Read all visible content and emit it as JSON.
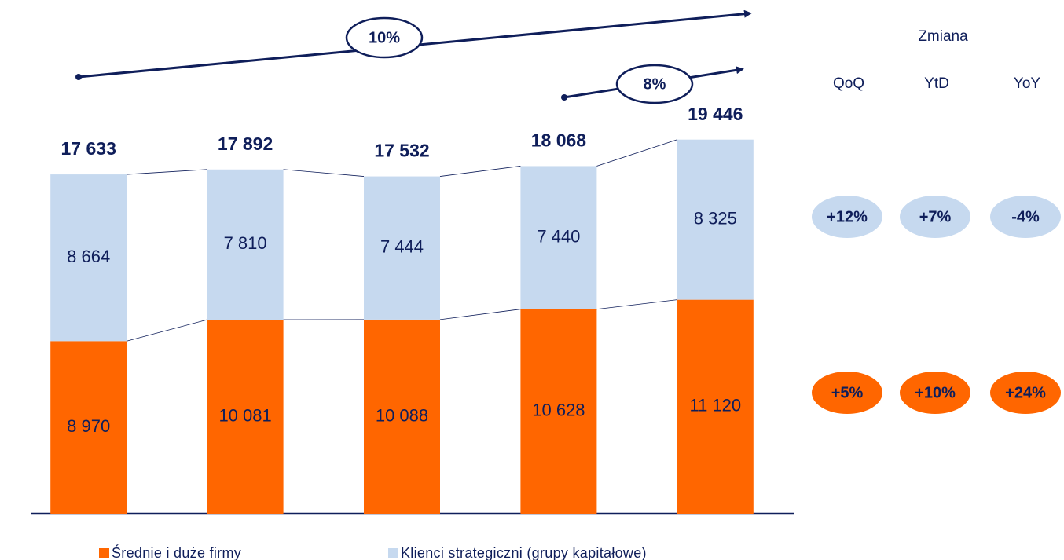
{
  "chart_data": {
    "type": "stacked_bar",
    "series": [
      {
        "name": "Średnie i duże firmy",
        "color": "#ff6600",
        "values": [
          8970,
          10081,
          10088,
          10628,
          11120
        ],
        "value_labels": [
          "8 970",
          "10 081",
          "10 088",
          "10 628",
          "11 120"
        ],
        "changes": [
          {
            "value": 5,
            "label": "+5%"
          },
          {
            "value": 10,
            "label": "+10%"
          },
          {
            "value": 24,
            "label": "+24%"
          }
        ]
      },
      {
        "name": "Klienci strategiczni (grupy kapitałowe)",
        "color": "#c6d9ef",
        "values": [
          8664,
          7810,
          7444,
          7440,
          8325
        ],
        "value_labels": [
          "8 664",
          "7 810",
          "7 444",
          "7 440",
          "8 325"
        ],
        "changes": [
          {
            "value": 12,
            "label": "+12%"
          },
          {
            "value": 7,
            "label": "+7%"
          },
          {
            "value": -4,
            "label": "-4%"
          }
        ]
      }
    ],
    "totals": [
      17633,
      17892,
      17532,
      18068,
      19446
    ],
    "total_labels": [
      "17 633",
      "17 892",
      "17 532",
      "18 068",
      "19 446"
    ],
    "ylim": [
      0,
      26700
    ],
    "annotations": [
      {
        "value": 10,
        "label": "10%"
      },
      {
        "value": 8,
        "label": "8%"
      }
    ],
    "change_title": "Zmiana",
    "change_columns": [
      "QoQ",
      "YtD",
      "YoY"
    ]
  }
}
